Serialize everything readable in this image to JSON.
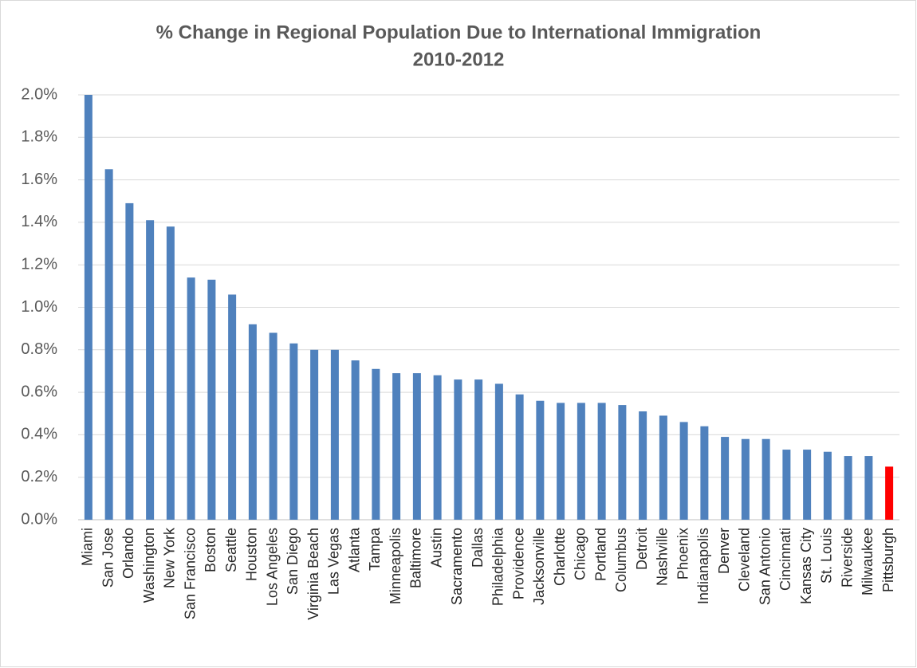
{
  "chart_data": {
    "type": "bar",
    "title": "% Change in Regional Population Due to International Immigration",
    "subtitle": "2010-2012",
    "categories": [
      "Miami",
      "San Jose",
      "Orlando",
      "Washington",
      "New York",
      "San Francisco",
      "Boston",
      "Seattle",
      "Houston",
      "Los Angeles",
      "San Diego",
      "Virginia Beach",
      "Las Vegas",
      "Atlanta",
      "Tampa",
      "Minneapolis",
      "Baltimore",
      "Austin",
      "Sacramento",
      "Dallas",
      "Philadelphia",
      "Providence",
      "Jacksonville",
      "Charlotte",
      "Chicago",
      "Portland",
      "Columbus",
      "Detroit",
      "Nashville",
      "Phoenix",
      "Indianapolis",
      "Denver",
      "Cleveland",
      "San Antonio",
      "Cincinnati",
      "Kansas City",
      "St. Louis",
      "Riverside",
      "Milwaukee",
      "Pittsburgh"
    ],
    "values": [
      2.0,
      1.65,
      1.49,
      1.41,
      1.38,
      1.14,
      1.13,
      1.06,
      0.92,
      0.88,
      0.83,
      0.8,
      0.8,
      0.75,
      0.71,
      0.69,
      0.69,
      0.68,
      0.66,
      0.66,
      0.64,
      0.59,
      0.56,
      0.55,
      0.55,
      0.55,
      0.54,
      0.51,
      0.49,
      0.46,
      0.44,
      0.39,
      0.38,
      0.38,
      0.33,
      0.33,
      0.32,
      0.3,
      0.3,
      0.25
    ],
    "colors": [
      "#4f81bd",
      "#4f81bd",
      "#4f81bd",
      "#4f81bd",
      "#4f81bd",
      "#4f81bd",
      "#4f81bd",
      "#4f81bd",
      "#4f81bd",
      "#4f81bd",
      "#4f81bd",
      "#4f81bd",
      "#4f81bd",
      "#4f81bd",
      "#4f81bd",
      "#4f81bd",
      "#4f81bd",
      "#4f81bd",
      "#4f81bd",
      "#4f81bd",
      "#4f81bd",
      "#4f81bd",
      "#4f81bd",
      "#4f81bd",
      "#4f81bd",
      "#4f81bd",
      "#4f81bd",
      "#4f81bd",
      "#4f81bd",
      "#4f81bd",
      "#4f81bd",
      "#4f81bd",
      "#4f81bd",
      "#4f81bd",
      "#4f81bd",
      "#4f81bd",
      "#4f81bd",
      "#4f81bd",
      "#4f81bd",
      "#ff0000"
    ],
    "ylim": [
      0,
      2.0
    ],
    "yticks": [
      {
        "value": 0,
        "label": "0.0%"
      },
      {
        "value": 0.2,
        "label": "0.2%"
      },
      {
        "value": 0.4,
        "label": "0.4%"
      },
      {
        "value": 0.6,
        "label": "0.6%"
      },
      {
        "value": 0.8,
        "label": "0.8%"
      },
      {
        "value": 1.0,
        "label": "1.0%"
      },
      {
        "value": 1.2,
        "label": "1.2%"
      },
      {
        "value": 1.4,
        "label": "1.4%"
      },
      {
        "value": 1.6,
        "label": "1.6%"
      },
      {
        "value": 1.8,
        "label": "1.8%"
      },
      {
        "value": 2.0,
        "label": "2.0%"
      }
    ],
    "grid": true
  }
}
